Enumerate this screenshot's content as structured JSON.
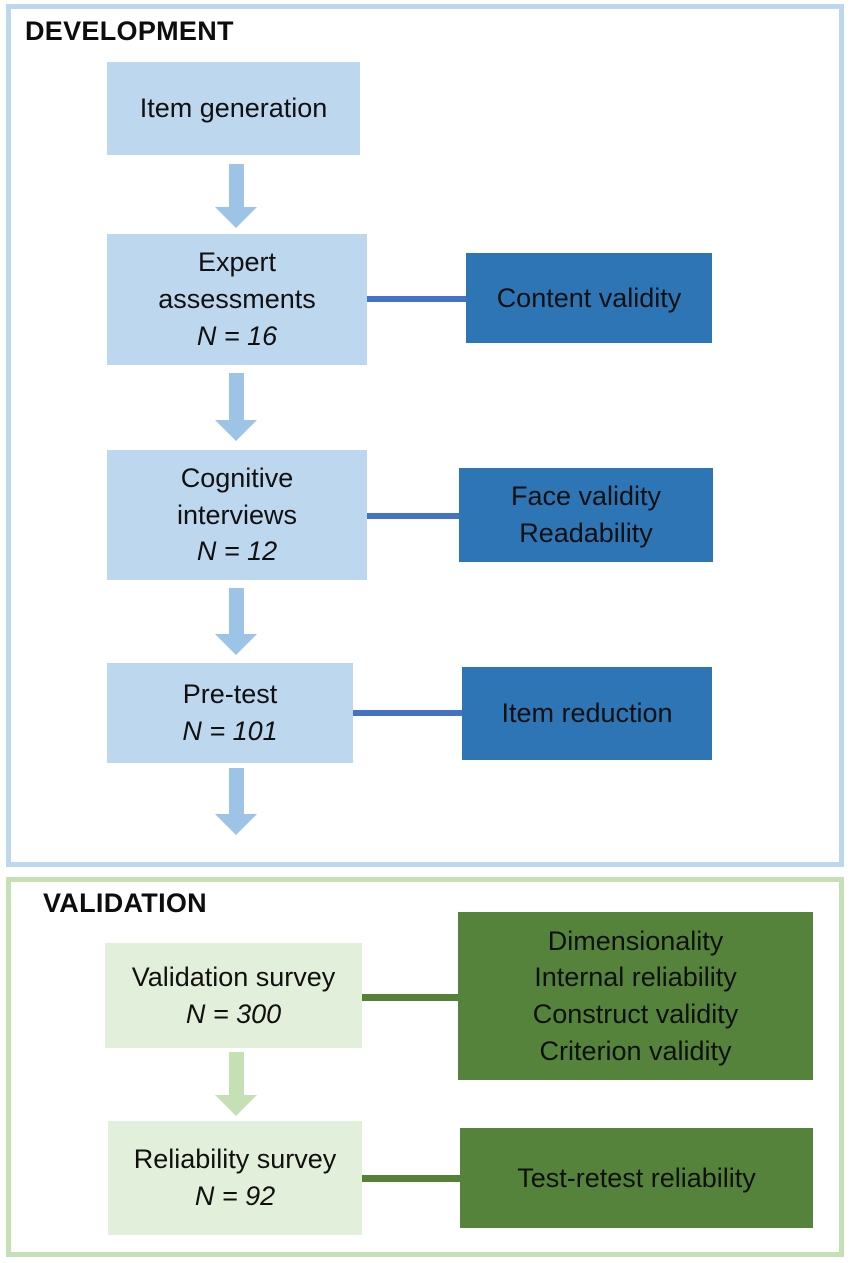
{
  "colors": {
    "light_blue": "#BDD7EE",
    "arrow_blue": "#9DC3E6",
    "dark_blue": "#2E75B6",
    "connector_blue": "#4472C4",
    "light_green": "#E2EFDA",
    "arrow_green": "#C5E0B4",
    "dark_green": "#55833B",
    "connector_green": "#538135",
    "border_blue": "#BDD7EE",
    "border_green": "#C5E0B4",
    "text": "#101010"
  },
  "development": {
    "title": "DEVELOPMENT",
    "steps": [
      {
        "lines": [
          "Item generation"
        ]
      },
      {
        "lines": [
          "Expert",
          "assessments"
        ],
        "n": "N = 16",
        "outcome": {
          "lines": [
            "Content validity"
          ]
        }
      },
      {
        "lines": [
          "Cognitive",
          "interviews"
        ],
        "n": "N = 12",
        "outcome": {
          "lines": [
            "Face validity",
            "Readability"
          ]
        }
      },
      {
        "lines": [
          "Pre-test"
        ],
        "n": "N = 101",
        "outcome": {
          "lines": [
            "Item reduction"
          ]
        }
      }
    ]
  },
  "validation": {
    "title": "VALIDATION",
    "steps": [
      {
        "lines": [
          "Validation survey"
        ],
        "n": "N = 300",
        "outcome": {
          "lines": [
            "Dimensionality",
            "Internal reliability",
            "Construct validity",
            "Criterion validity"
          ]
        }
      },
      {
        "lines": [
          "Reliability survey"
        ],
        "n": "N = 92",
        "outcome": {
          "lines": [
            "Test-retest reliability"
          ]
        }
      }
    ]
  }
}
